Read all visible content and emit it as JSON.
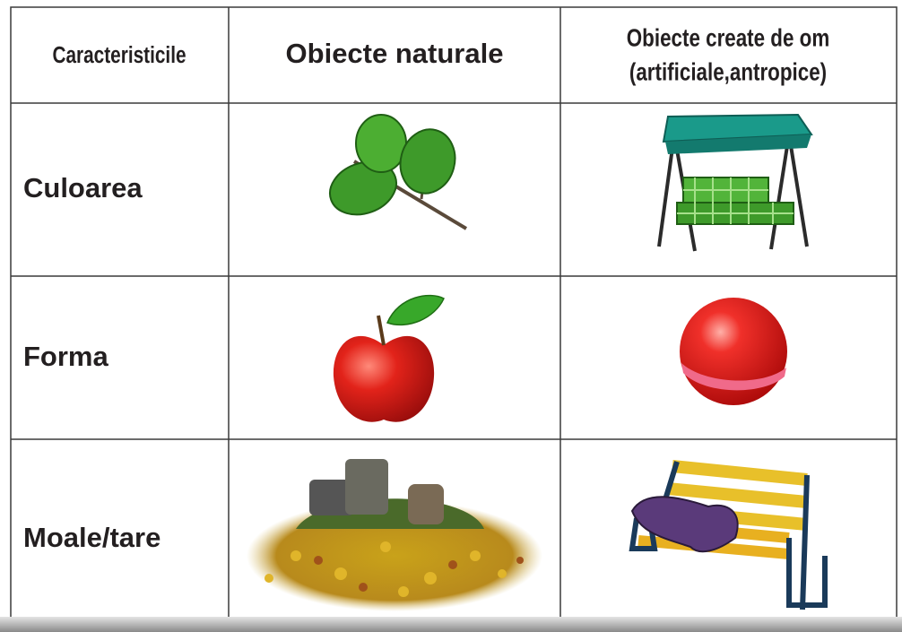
{
  "table": {
    "header": [
      "Caracteristicile",
      "Obiecte naturale",
      [
        "Obiecte create de om",
        "(artificiale,antropice)"
      ]
    ],
    "rows": [
      "Culoarea",
      "Forma",
      "Moale/tare"
    ]
  }
}
